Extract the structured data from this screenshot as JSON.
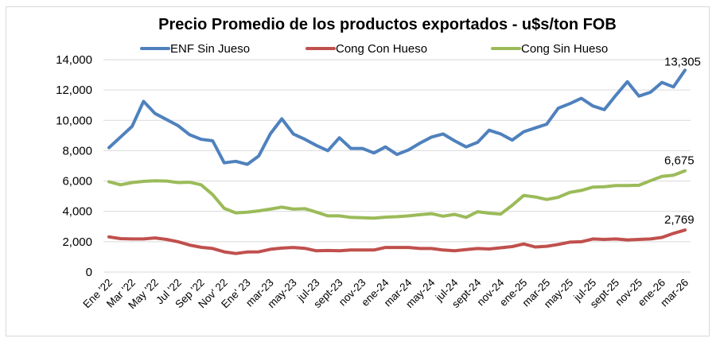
{
  "chart_data": {
    "type": "line",
    "title": "Precio Promedio de los productos exportados - u$s/ton FOB",
    "xlabel": "",
    "ylabel": "",
    "ylim": [
      0,
      14000
    ],
    "yticks": [
      "14,000",
      "12,000",
      "10,000",
      "8,000",
      "6,000",
      "4,000",
      "2,000",
      "0"
    ],
    "ytick_values": [
      14000,
      12000,
      10000,
      8000,
      6000,
      4000,
      2000,
      0
    ],
    "grid": true,
    "legend_position": "top",
    "x_count": 51,
    "x_tick_labels": [
      "Ene '22",
      "Mar '22",
      "May '22",
      "Jul '22",
      "Sep '22",
      "Nov' 22",
      "Ene' 23",
      "mar-23",
      "may-23",
      "jul-23",
      "sept-23",
      "nov-23",
      "ene-24",
      "mar-24",
      "may-24",
      "jul-24",
      "sept-24",
      "nov-24",
      "ene-25",
      "mar-25",
      "may-25",
      "jul-25",
      "sept-25",
      "nov-25",
      "ene-26",
      "mar-26"
    ],
    "x_tick_every": 2,
    "series": [
      {
        "name": "ENF Sin Jueso",
        "color": "#4f81bd",
        "values": [
          8200,
          8900,
          9600,
          11250,
          10450,
          10050,
          9650,
          9050,
          8750,
          8650,
          7200,
          7300,
          7100,
          7650,
          9100,
          10100,
          9100,
          8750,
          8350,
          8000,
          8850,
          8150,
          8150,
          7850,
          8250,
          7750,
          8050,
          8500,
          8900,
          9100,
          8650,
          8250,
          8550,
          9350,
          9100,
          8700,
          9250,
          9500,
          9750,
          10800,
          11100,
          11450,
          10950,
          10700,
          11650,
          12550,
          11600,
          11850,
          12500,
          12200,
          13305
        ],
        "last_label": "13,305"
      },
      {
        "name": "Cong Con Hueso",
        "color": "#c0504d",
        "values": [
          2320,
          2200,
          2180,
          2180,
          2250,
          2150,
          2000,
          1780,
          1630,
          1550,
          1330,
          1220,
          1320,
          1330,
          1500,
          1580,
          1620,
          1560,
          1400,
          1420,
          1400,
          1450,
          1450,
          1450,
          1620,
          1620,
          1620,
          1550,
          1550,
          1450,
          1400,
          1480,
          1550,
          1520,
          1600,
          1680,
          1850,
          1650,
          1700,
          1820,
          1970,
          2000,
          2180,
          2150,
          2180,
          2120,
          2150,
          2180,
          2280,
          2550,
          2769
        ],
        "last_label": "2,769"
      },
      {
        "name": "Cong Sin Hueso",
        "color": "#9bbb59",
        "values": [
          5950,
          5750,
          5900,
          5980,
          6020,
          6000,
          5900,
          5920,
          5750,
          5100,
          4200,
          3900,
          3950,
          4030,
          4150,
          4280,
          4150,
          4180,
          3950,
          3700,
          3700,
          3600,
          3580,
          3550,
          3620,
          3650,
          3700,
          3780,
          3850,
          3680,
          3800,
          3600,
          3980,
          3880,
          3820,
          4400,
          5050,
          4950,
          4780,
          4930,
          5250,
          5380,
          5600,
          5620,
          5700,
          5700,
          5720,
          6020,
          6300,
          6380,
          6675
        ],
        "last_label": "6,675"
      }
    ]
  }
}
